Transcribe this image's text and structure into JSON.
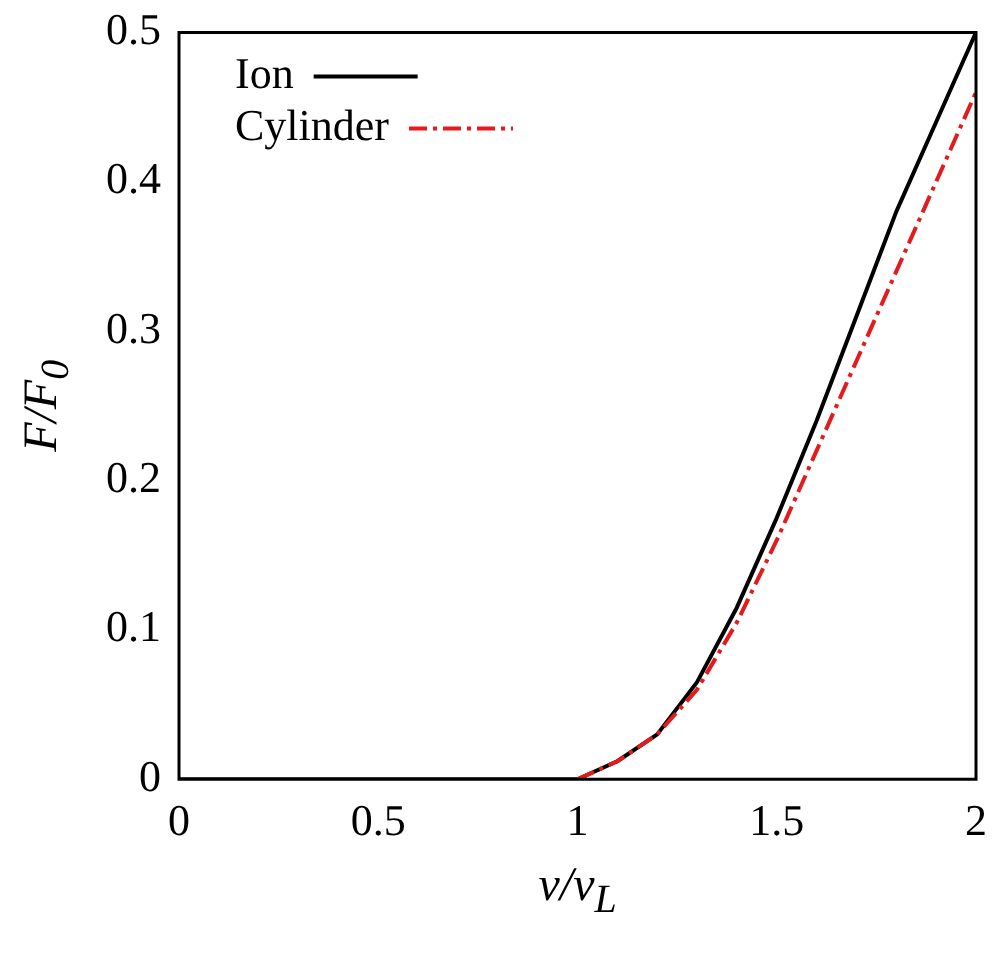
{
  "chart_data": {
    "type": "line",
    "xlabel": "v/v$_{L}$",
    "ylabel": "F/F$_{0}$",
    "xlim": [
      0,
      2
    ],
    "ylim": [
      0,
      0.5
    ],
    "xticks": [
      0,
      0.5,
      1,
      1.5,
      2
    ],
    "yticks": [
      0,
      0.1,
      0.2,
      0.3,
      0.4,
      0.5
    ],
    "grid": false,
    "legend": "top left",
    "marker": "none",
    "x": [
      0,
      0.5,
      1,
      1.1,
      1.2,
      1.3,
      1.4,
      1.5,
      1.6,
      1.7,
      1.8,
      1.9,
      2
    ],
    "series": [
      {
        "name": "Ion",
        "color": "#000000",
        "line_style": "solid",
        "values": [
          0,
          0,
          0,
          0.012,
          0.03,
          0.065,
          0.115,
          0.175,
          0.24,
          0.31,
          0.38,
          0.44,
          0.5
        ]
      },
      {
        "name": "Cylinder",
        "color": "#e41a1c",
        "line_style": "dashed",
        "values": [
          null,
          null,
          0,
          0.012,
          0.03,
          0.06,
          0.105,
          0.16,
          0.22,
          0.28,
          0.34,
          0.4,
          0.46
        ]
      }
    ]
  }
}
